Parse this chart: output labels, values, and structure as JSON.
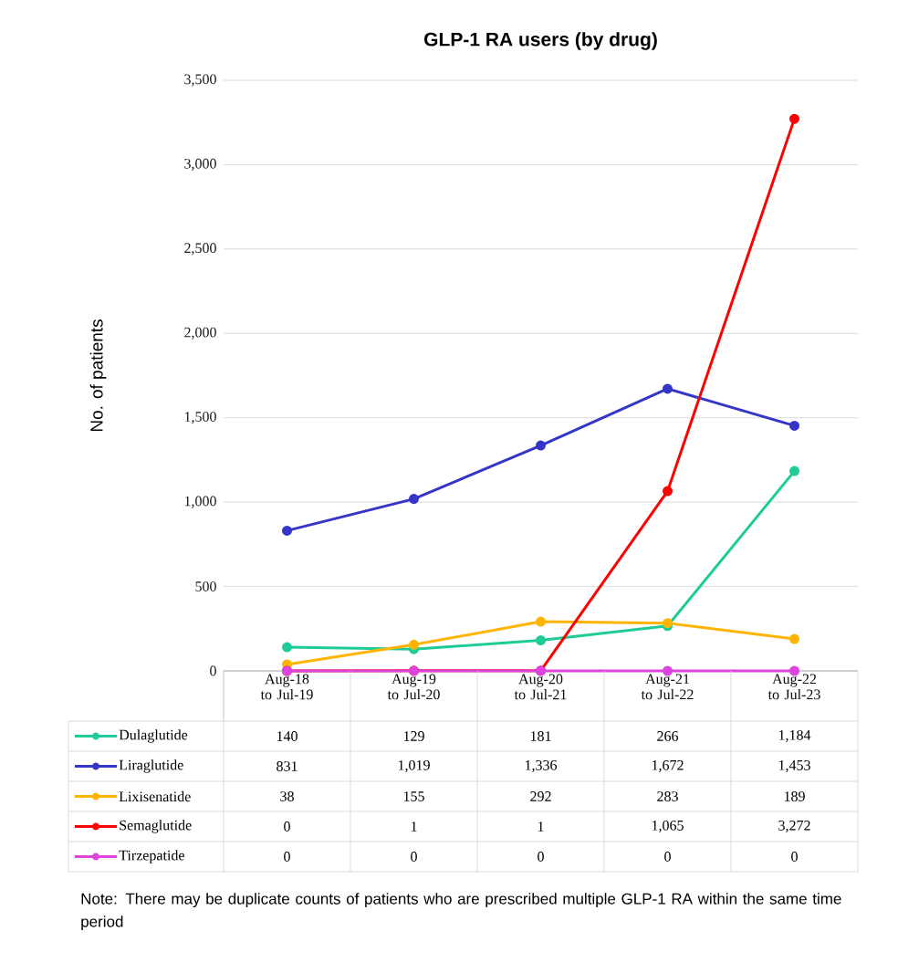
{
  "chart_data": {
    "type": "line",
    "title": "GLP-1 RA users (by drug)",
    "ylabel": "No. of patients",
    "categories": [
      "Aug-18 to Jul-19",
      "Aug-19 to Jul-20",
      "Aug-20 to Jul-21",
      "Aug-21 to Jul-22",
      "Aug-22 to Jul-23"
    ],
    "series": [
      {
        "name": "Dulaglutide",
        "color": "#1fcc98",
        "values": [
          140,
          129,
          181,
          266,
          1184
        ],
        "value_labels": [
          "140",
          "129",
          "181",
          "266",
          "1,184"
        ]
      },
      {
        "name": "Liraglutide",
        "color": "#3535c8",
        "values": [
          831,
          1019,
          1336,
          1672,
          1453
        ],
        "value_labels": [
          "831",
          "1,019",
          "1,336",
          "1,672",
          "1,453"
        ]
      },
      {
        "name": "Lixisenatide",
        "color": "#ffb400",
        "values": [
          38,
          155,
          292,
          283,
          189
        ],
        "value_labels": [
          "38",
          "155",
          "292",
          "283",
          "189"
        ]
      },
      {
        "name": "Semaglutide",
        "color": "#ff0000",
        "values": [
          0,
          1,
          1,
          1065,
          3272
        ],
        "value_labels": [
          "0",
          "1",
          "1",
          "1,065",
          "3,272"
        ]
      },
      {
        "name": "Tirzepatide",
        "color": "#dd44dd",
        "values": [
          0,
          0,
          0,
          0,
          0
        ],
        "value_labels": [
          "0",
          "0",
          "0",
          "0",
          "0"
        ]
      }
    ],
    "ylim": [
      0,
      3500
    ],
    "yticks": [
      0,
      500,
      {
        "value": 1000,
        "label": "1,000"
      },
      {
        "value": 1500,
        "label": "1,500"
      },
      {
        "value": 2000,
        "label": "2,000"
      },
      {
        "value": 2500,
        "label": "2,500"
      },
      {
        "value": 3000,
        "label": "3,000"
      },
      {
        "value": 3500,
        "label": "3,500"
      }
    ],
    "grid": "y",
    "marker": "circle",
    "legend": "bottom",
    "annotations": [
      "Note: There may be duplicate counts of patients who are prescribed multiple GLP-1 RA within the same time period"
    ]
  }
}
